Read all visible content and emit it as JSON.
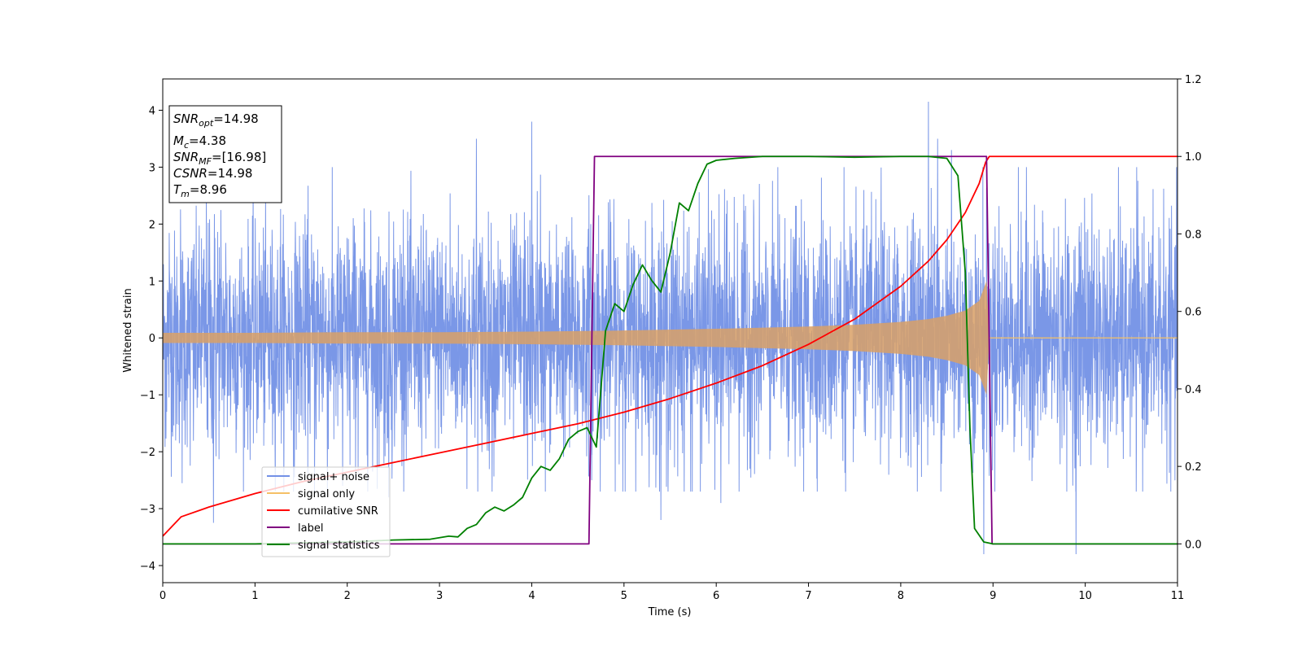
{
  "chart_data": {
    "type": "line",
    "xlabel": "Time (s)",
    "ylabel": "Whitened strain",
    "xlim": [
      0,
      11
    ],
    "ylim": [
      -4.3,
      4.55
    ],
    "y2lim": [
      -0.1,
      1.2
    ],
    "xticks": [
      "0",
      "1",
      "2",
      "3",
      "4",
      "5",
      "6",
      "7",
      "8",
      "9",
      "10",
      "11"
    ],
    "yticks": [
      "−4",
      "−3",
      "−2",
      "−1",
      "0",
      "1",
      "2",
      "3",
      "4"
    ],
    "y2ticks": [
      "0.0",
      "0.2",
      "0.4",
      "0.6",
      "0.8",
      "1.0",
      "1.2"
    ],
    "grid": false,
    "legend_position": "lower-left",
    "info_box": {
      "snr_opt": "=14.98",
      "mc": "=4.38",
      "snr_mf": "=[16.98]",
      "csnr": "=14.98",
      "tm": "=8.96"
    },
    "series": [
      {
        "name": "signal+ noise",
        "color": "#7391e6",
        "axis": "left",
        "description_values": {
          "baseline_amplitude": 1.5,
          "range": [
            -3.9,
            4.2
          ]
        },
        "spikes": [
          [
            0.55,
            -3.25
          ],
          [
            1.95,
            -2.6
          ],
          [
            2.45,
            -2.8
          ],
          [
            3.4,
            3.5
          ],
          [
            4.0,
            3.8
          ],
          [
            4.65,
            -2.5
          ],
          [
            5.4,
            -3.2
          ],
          [
            6.05,
            -2.9
          ],
          [
            8.3,
            4.15
          ],
          [
            8.4,
            3.5
          ],
          [
            8.55,
            3.3
          ],
          [
            8.9,
            -3.8
          ],
          [
            9.9,
            -3.8
          ]
        ]
      },
      {
        "name": "signal only",
        "color": "#f5c066",
        "axis": "left",
        "envelope": [
          [
            0,
            0.09
          ],
          [
            1,
            0.09
          ],
          [
            2,
            0.1
          ],
          [
            3,
            0.1
          ],
          [
            4,
            0.11
          ],
          [
            5,
            0.13
          ],
          [
            6,
            0.16
          ],
          [
            7,
            0.2
          ],
          [
            7.5,
            0.23
          ],
          [
            8,
            0.28
          ],
          [
            8.3,
            0.33
          ],
          [
            8.5,
            0.39
          ],
          [
            8.7,
            0.48
          ],
          [
            8.85,
            0.65
          ],
          [
            8.93,
            1.0
          ],
          [
            8.96,
            0.0
          ],
          [
            11,
            0.0
          ]
        ]
      },
      {
        "name": "cumilative SNR",
        "color": "#ff0000",
        "axis": "right",
        "points": [
          [
            0,
            0.02
          ],
          [
            0.2,
            0.07
          ],
          [
            0.5,
            0.095
          ],
          [
            1,
            0.13
          ],
          [
            1.5,
            0.16
          ],
          [
            2,
            0.185
          ],
          [
            2.5,
            0.21
          ],
          [
            3,
            0.235
          ],
          [
            3.5,
            0.26
          ],
          [
            4,
            0.285
          ],
          [
            4.5,
            0.31
          ],
          [
            5,
            0.34
          ],
          [
            5.5,
            0.375
          ],
          [
            6,
            0.415
          ],
          [
            6.5,
            0.46
          ],
          [
            7,
            0.515
          ],
          [
            7.5,
            0.58
          ],
          [
            8,
            0.665
          ],
          [
            8.3,
            0.73
          ],
          [
            8.5,
            0.785
          ],
          [
            8.7,
            0.855
          ],
          [
            8.85,
            0.93
          ],
          [
            8.92,
            0.985
          ],
          [
            8.96,
            1.0
          ],
          [
            11,
            1.0
          ]
        ]
      },
      {
        "name": "label",
        "color": "#800080",
        "axis": "right",
        "points": [
          [
            0,
            0
          ],
          [
            4.62,
            0
          ],
          [
            4.68,
            1
          ],
          [
            8.93,
            1
          ],
          [
            8.99,
            0
          ],
          [
            11,
            0
          ]
        ]
      },
      {
        "name": "signal statistics",
        "color": "#008000",
        "axis": "right",
        "points": [
          [
            0,
            0
          ],
          [
            1,
            0
          ],
          [
            2,
            0.005
          ],
          [
            2.5,
            0.01
          ],
          [
            2.9,
            0.012
          ],
          [
            3.1,
            0.02
          ],
          [
            3.2,
            0.018
          ],
          [
            3.3,
            0.04
          ],
          [
            3.4,
            0.05
          ],
          [
            3.5,
            0.08
          ],
          [
            3.6,
            0.095
          ],
          [
            3.7,
            0.085
          ],
          [
            3.8,
            0.1
          ],
          [
            3.9,
            0.12
          ],
          [
            4.0,
            0.17
          ],
          [
            4.1,
            0.2
          ],
          [
            4.2,
            0.19
          ],
          [
            4.3,
            0.22
          ],
          [
            4.4,
            0.27
          ],
          [
            4.5,
            0.29
          ],
          [
            4.6,
            0.3
          ],
          [
            4.7,
            0.25
          ],
          [
            4.8,
            0.55
          ],
          [
            4.9,
            0.62
          ],
          [
            5.0,
            0.6
          ],
          [
            5.1,
            0.67
          ],
          [
            5.2,
            0.72
          ],
          [
            5.3,
            0.68
          ],
          [
            5.4,
            0.65
          ],
          [
            5.5,
            0.75
          ],
          [
            5.6,
            0.88
          ],
          [
            5.7,
            0.86
          ],
          [
            5.8,
            0.93
          ],
          [
            5.9,
            0.98
          ],
          [
            6.0,
            0.99
          ],
          [
            6.2,
            0.995
          ],
          [
            6.5,
            1.0
          ],
          [
            7.0,
            1.0
          ],
          [
            7.5,
            0.998
          ],
          [
            8.0,
            1.0
          ],
          [
            8.3,
            1.0
          ],
          [
            8.5,
            0.995
          ],
          [
            8.62,
            0.95
          ],
          [
            8.7,
            0.7
          ],
          [
            8.75,
            0.3
          ],
          [
            8.8,
            0.04
          ],
          [
            8.9,
            0.005
          ],
          [
            9.0,
            0
          ],
          [
            11,
            0
          ]
        ]
      }
    ]
  }
}
